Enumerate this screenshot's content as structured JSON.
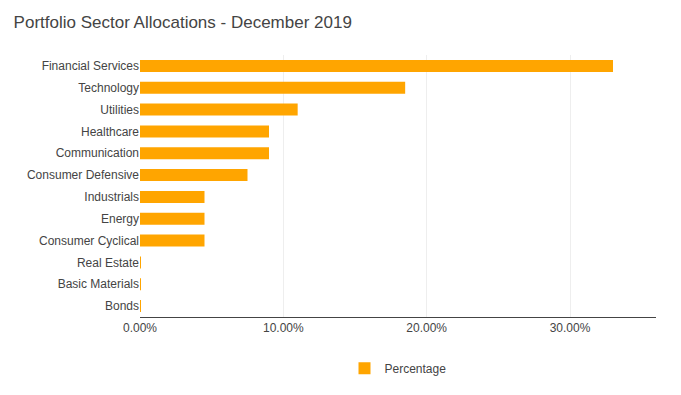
{
  "chart_data": {
    "type": "bar",
    "orientation": "horizontal",
    "title": "Portfolio Sector Allocations - December 2019",
    "categories": [
      "Financial Services",
      "Technology",
      "Utilities",
      "Healthcare",
      "Communication",
      "Consumer Defensive",
      "Industrials",
      "Energy",
      "Consumer Cyclical",
      "Real Estate",
      "Basic Materials",
      "Bonds"
    ],
    "series": [
      {
        "name": "Percentage",
        "color": "#FFA500",
        "values": [
          33.0,
          18.5,
          11.0,
          9.0,
          9.0,
          7.5,
          4.5,
          4.5,
          4.5,
          0.05,
          0.05,
          0.05
        ]
      }
    ],
    "xlim": [
      0,
      36
    ],
    "xticks": [
      {
        "value": 0,
        "label": "0.00%"
      },
      {
        "value": 10,
        "label": "10.00%"
      },
      {
        "value": 20,
        "label": "20.00%"
      },
      {
        "value": 30,
        "label": "30.00%"
      }
    ],
    "grid": true,
    "legend": "bottom"
  }
}
